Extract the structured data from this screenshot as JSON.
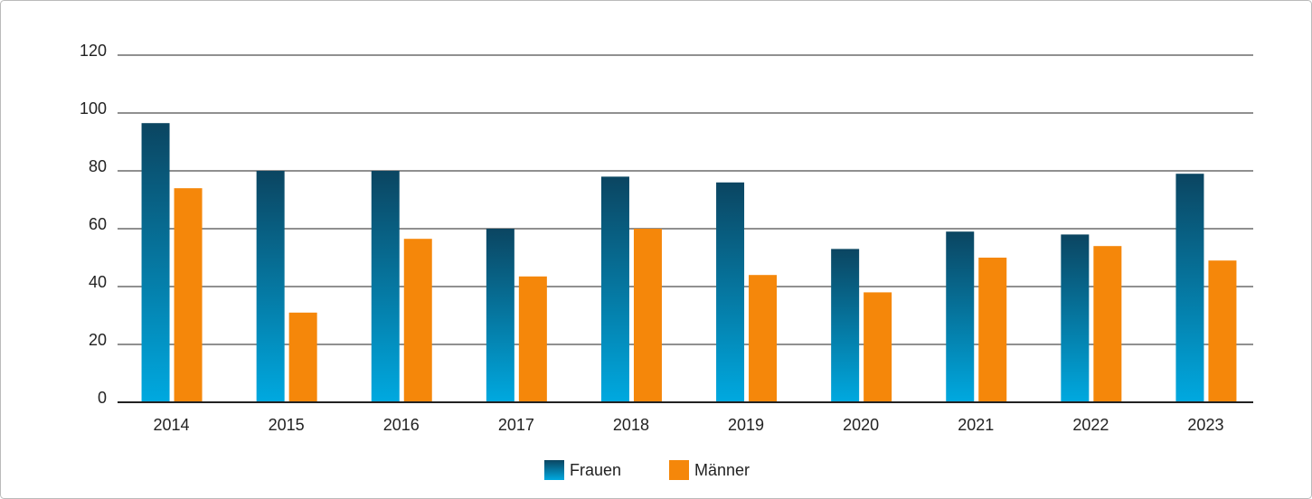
{
  "chart_data": {
    "type": "bar",
    "categories": [
      "2014",
      "2015",
      "2016",
      "2017",
      "2018",
      "2019",
      "2020",
      "2021",
      "2022",
      "2023"
    ],
    "series": [
      {
        "name": "Frauen",
        "color": "#00a9e0",
        "values": [
          96.5,
          80,
          80,
          60,
          78,
          76,
          53,
          59,
          58,
          79
        ]
      },
      {
        "name": "Männer",
        "color": "#f5870a",
        "values": [
          74,
          31,
          56.5,
          43.5,
          60,
          44,
          38,
          50,
          54,
          49
        ]
      }
    ],
    "ylim": [
      0,
      120
    ],
    "yticks": [
      0,
      20,
      40,
      60,
      80,
      100,
      120
    ],
    "grid": true,
    "legend": "bottom"
  }
}
